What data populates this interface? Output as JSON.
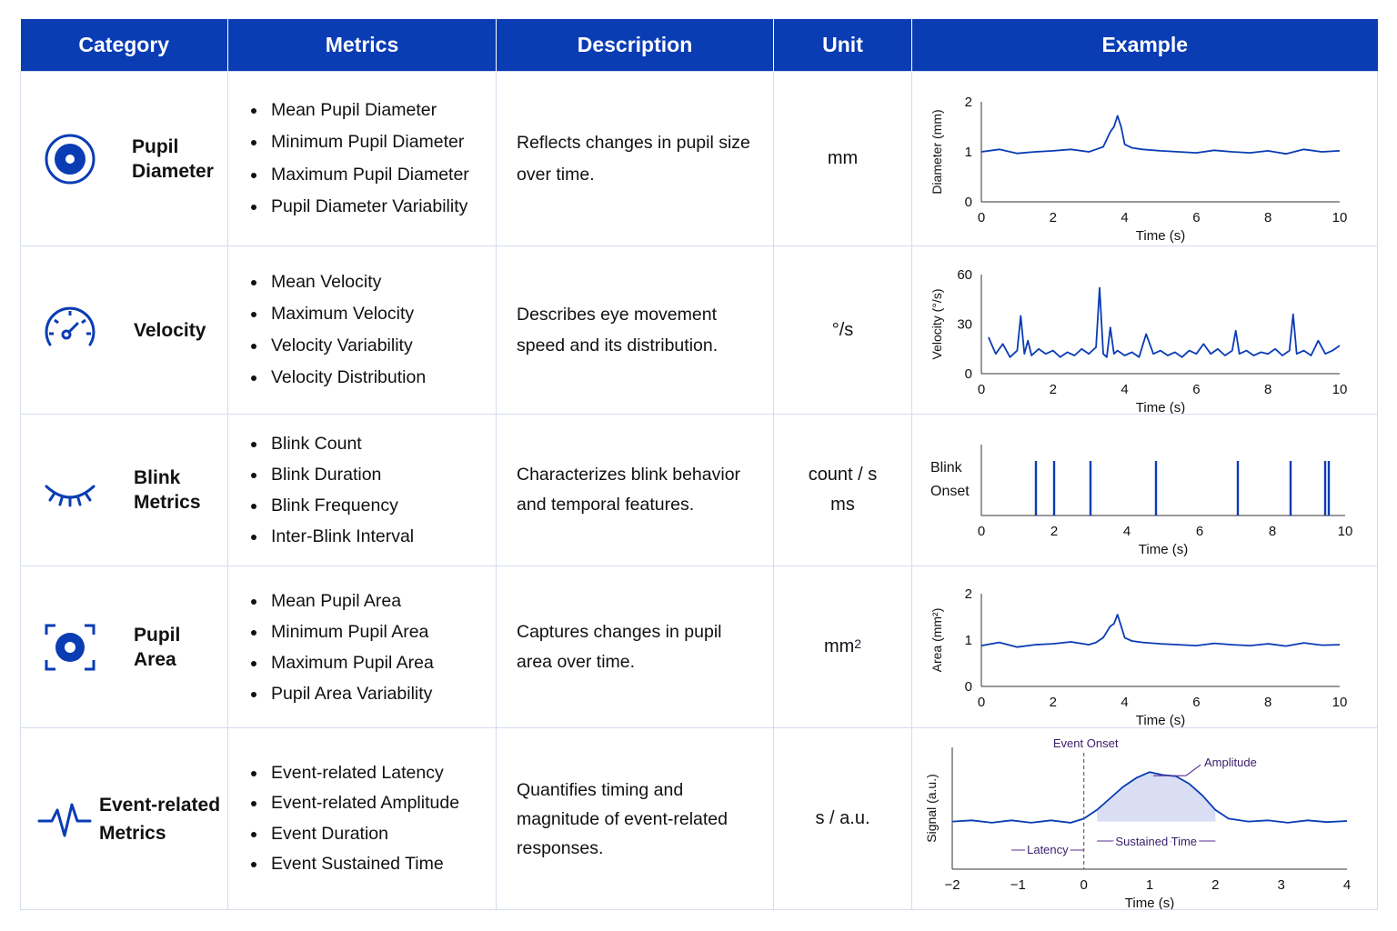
{
  "header": [
    "Category",
    "Metrics",
    "Description",
    "Unit",
    "Example"
  ],
  "accent": "#0a3cb4",
  "rows": [
    {
      "icon": "target-eye-icon",
      "category": "Pupil\nDiameter",
      "metrics": [
        "Mean Pupil Diameter",
        "Minimum Pupil Diameter",
        "Maximum Pupil Diameter",
        "Pupil Diameter Variability"
      ],
      "description": "Reflects changes in pupil size\nover time.",
      "unit": "mm"
    },
    {
      "icon": "speedometer-icon",
      "category": "Velocity",
      "metrics": [
        "Mean Velocity",
        "Maximum Velocity",
        "Velocity Variability",
        "Velocity Distribution"
      ],
      "description": "Describes eye movement\nspeed and its distribution.",
      "unit": "°/s"
    },
    {
      "icon": "closed-eye-icon",
      "category": "Blink\nMetrics",
      "metrics": [
        "Blink Count",
        "Blink Duration",
        "Blink Frequency",
        "Inter-Blink Interval"
      ],
      "description": "Characterizes blink behavior\nand temporal features.",
      "unit": "count / s\nms"
    },
    {
      "icon": "focus-eye-icon",
      "category": "Pupil Area",
      "metrics": [
        "Mean Pupil Area",
        "Minimum Pupil Area",
        "Maximum Pupil Area",
        "Pupil Area Variability"
      ],
      "description": "Captures changes in pupil\narea over time.",
      "unit": "mm",
      "unit_sup": "2"
    },
    {
      "icon": "waveform-icon",
      "category": "Event-related\nMetrics",
      "metrics": [
        "Event-related Latency",
        "Event-related Amplitude",
        "Event Duration",
        "Event Sustained Time"
      ],
      "description": "Quantifies timing and\nmagnitude of event-related\nresponses.",
      "unit": "s / a.u."
    }
  ],
  "chart_data": [
    {
      "type": "line",
      "xlabel": "Time (s)",
      "ylabel": "Diameter (mm)",
      "xlim": [
        0,
        10
      ],
      "ylim": [
        0,
        2
      ],
      "xticks": [
        "0",
        "2",
        "4",
        "6",
        "8",
        "10"
      ],
      "yticks": [
        "0",
        "1",
        "2"
      ],
      "x": [
        0,
        0.5,
        1,
        1.5,
        2,
        2.5,
        3,
        3.2,
        3.4,
        3.6,
        3.7,
        3.8,
        3.9,
        4,
        4.2,
        4.5,
        5,
        5.5,
        6,
        6.5,
        7,
        7.5,
        8,
        8.5,
        9,
        9.5,
        10
      ],
      "y": [
        1.0,
        1.05,
        0.97,
        1.0,
        1.02,
        1.05,
        1.0,
        1.05,
        1.1,
        1.4,
        1.5,
        1.72,
        1.5,
        1.15,
        1.08,
        1.05,
        1.02,
        1.0,
        0.98,
        1.03,
        1.0,
        0.98,
        1.02,
        0.96,
        1.05,
        1.0,
        1.02
      ]
    },
    {
      "type": "line",
      "xlabel": "Time (s)",
      "ylabel": "Velocity (°/s)",
      "xlim": [
        0,
        10
      ],
      "ylim": [
        0,
        60
      ],
      "xticks": [
        "0",
        "2",
        "4",
        "6",
        "8",
        "10"
      ],
      "yticks": [
        "0",
        "30",
        "60"
      ],
      "x": [
        0.2,
        0.4,
        0.6,
        0.8,
        1.0,
        1.1,
        1.2,
        1.3,
        1.4,
        1.6,
        1.8,
        2.0,
        2.2,
        2.4,
        2.6,
        2.8,
        3.0,
        3.2,
        3.3,
        3.4,
        3.5,
        3.6,
        3.7,
        3.8,
        4.0,
        4.2,
        4.4,
        4.6,
        4.8,
        5.0,
        5.2,
        5.4,
        5.6,
        5.8,
        6.0,
        6.2,
        6.4,
        6.6,
        6.8,
        7.0,
        7.1,
        7.2,
        7.4,
        7.6,
        7.8,
        8.0,
        8.2,
        8.4,
        8.6,
        8.7,
        8.8,
        9.0,
        9.2,
        9.4,
        9.6,
        9.8,
        10.0
      ],
      "y": [
        22,
        12,
        18,
        10,
        14,
        35,
        12,
        20,
        11,
        15,
        12,
        14,
        10,
        13,
        11,
        15,
        12,
        16,
        52,
        12,
        10,
        28,
        12,
        14,
        11,
        13,
        10,
        24,
        12,
        14,
        11,
        13,
        10,
        14,
        12,
        18,
        12,
        15,
        11,
        14,
        26,
        12,
        14,
        11,
        13,
        12,
        15,
        11,
        14,
        36,
        12,
        14,
        11,
        20,
        12,
        14,
        17
      ]
    },
    {
      "type": "event",
      "xlabel": "Time (s)",
      "ylabel": "Blink\nOnset",
      "xlim": [
        0,
        10
      ],
      "xticks": [
        "0",
        "2",
        "4",
        "6",
        "8",
        "10"
      ],
      "x": [
        1.5,
        2.0,
        3.0,
        4.8,
        7.05,
        8.5,
        9.45,
        9.55
      ]
    },
    {
      "type": "line",
      "xlabel": "Time (s)",
      "ylabel": "Area (mm²)",
      "xlim": [
        0,
        10
      ],
      "ylim": [
        0,
        2
      ],
      "xticks": [
        "0",
        "2",
        "4",
        "6",
        "8",
        "10"
      ],
      "yticks": [
        "0",
        "1",
        "2"
      ],
      "x": [
        0,
        0.5,
        1,
        1.5,
        2,
        2.5,
        3,
        3.2,
        3.4,
        3.6,
        3.7,
        3.8,
        3.9,
        4,
        4.2,
        4.5,
        5,
        5.5,
        6,
        6.5,
        7,
        7.5,
        8,
        8.5,
        9,
        9.5,
        10
      ],
      "y": [
        0.88,
        0.95,
        0.85,
        0.9,
        0.92,
        0.96,
        0.9,
        0.95,
        1.05,
        1.3,
        1.35,
        1.55,
        1.3,
        1.05,
        0.98,
        0.95,
        0.92,
        0.9,
        0.88,
        0.93,
        0.9,
        0.88,
        0.92,
        0.87,
        0.94,
        0.89,
        0.9
      ]
    },
    {
      "type": "area",
      "xlabel": "Time (s)",
      "ylabel": "Signal (a.u.)",
      "xlim": [
        -2,
        4
      ],
      "xticks": [
        "−2",
        "−1",
        "0",
        "1",
        "2",
        "3",
        "4"
      ],
      "x": [
        -2,
        -1.7,
        -1.4,
        -1.1,
        -0.8,
        -0.5,
        -0.2,
        0,
        0.2,
        0.4,
        0.6,
        0.8,
        1.0,
        1.2,
        1.4,
        1.6,
        1.8,
        2.0,
        2.2,
        2.5,
        2.8,
        3.1,
        3.4,
        3.7,
        4.0
      ],
      "y": [
        0.1,
        0.12,
        0.08,
        0.12,
        0.08,
        0.12,
        0.08,
        0.15,
        0.3,
        0.5,
        0.7,
        0.85,
        0.95,
        0.9,
        0.88,
        0.75,
        0.55,
        0.3,
        0.15,
        0.1,
        0.12,
        0.08,
        0.12,
        0.09,
        0.11
      ],
      "annotations": {
        "event_onset": "Event Onset",
        "amplitude": "Amplitude",
        "latency": "Latency",
        "sustained": "Sustained Time"
      }
    }
  ]
}
